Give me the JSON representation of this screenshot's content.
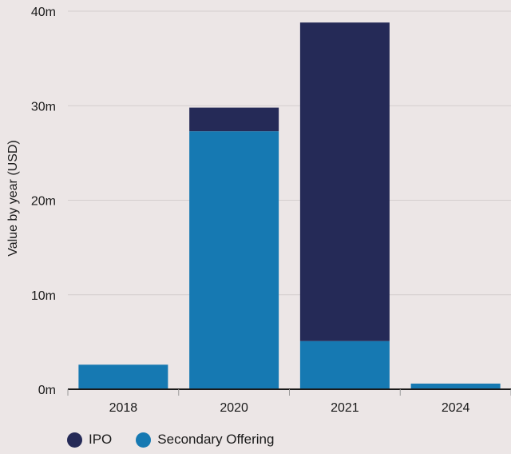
{
  "chart_data": {
    "type": "bar",
    "stacked": true,
    "title": "",
    "xlabel": "",
    "ylabel": "Value by year  (USD)",
    "categories": [
      "2018",
      "2020",
      "2021",
      "2024"
    ],
    "series": [
      {
        "name": "Secondary Offering",
        "color": "#1679b2",
        "values": [
          2.6,
          27.3,
          5.1,
          0.6
        ]
      },
      {
        "name": "IPO",
        "color": "#252a57",
        "values": [
          0,
          2.5,
          33.7,
          0
        ]
      }
    ],
    "ylim": [
      0,
      40
    ],
    "yticks": [
      0,
      10,
      20,
      30,
      40
    ],
    "ytick_labels": [
      "0m",
      "10m",
      "20m",
      "30m",
      "40m"
    ],
    "grid": true,
    "legend": {
      "position": "bottom-left",
      "order": [
        "IPO",
        "Secondary Offering"
      ]
    }
  }
}
